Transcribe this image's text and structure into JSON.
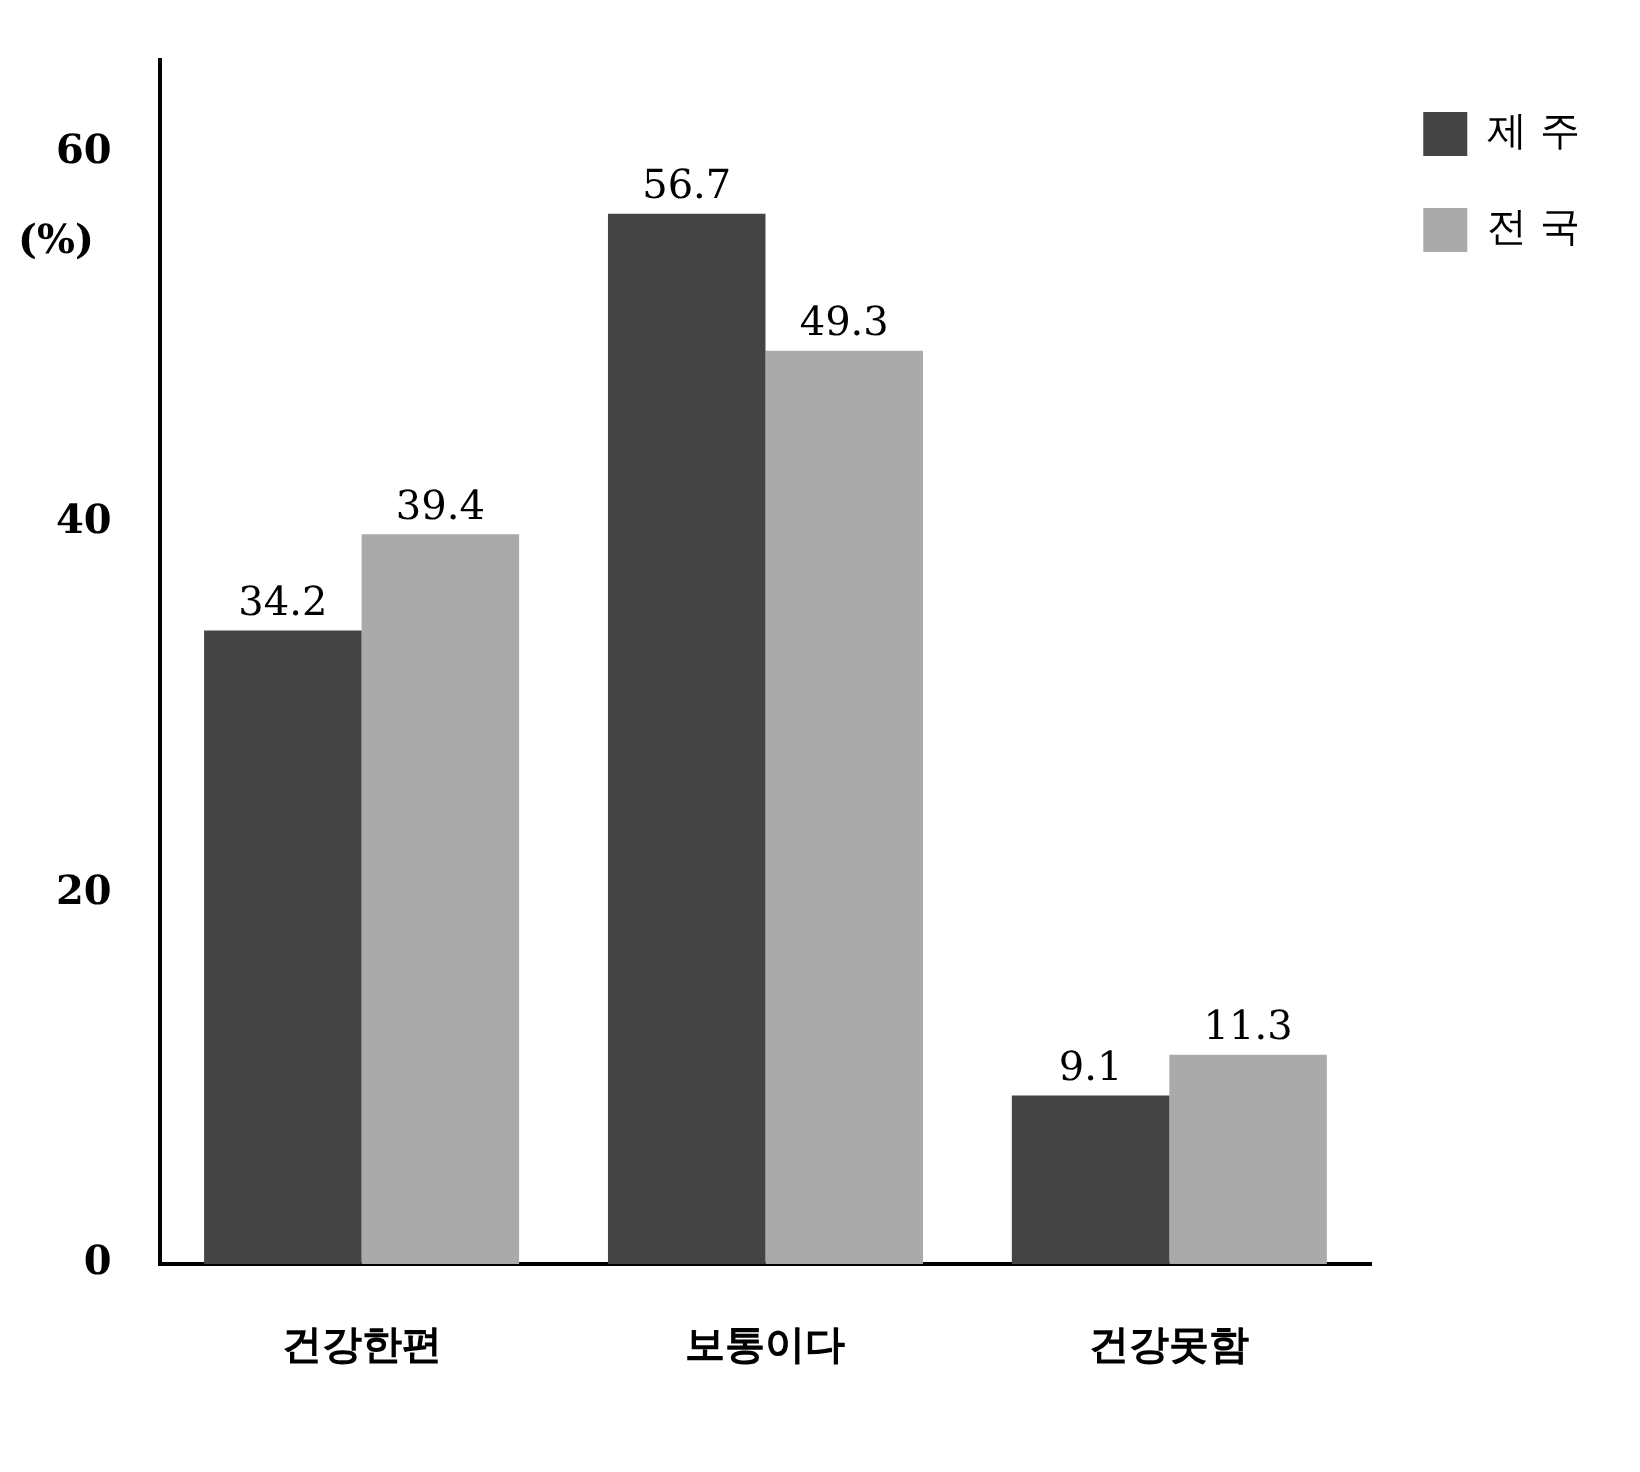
{
  "chart_data": {
    "type": "bar",
    "ylabel": "(%)",
    "categories": [
      "건강한편",
      "보통이다",
      "건강못함"
    ],
    "series": [
      {
        "name": "제 주",
        "color": "#444444",
        "values": [
          34.2,
          56.7,
          9.1
        ]
      },
      {
        "name": "전 국",
        "color": "#aaaaaa",
        "values": [
          39.4,
          49.3,
          11.3
        ]
      }
    ],
    "ylim": [
      0,
      65
    ],
    "yticks": [
      0,
      20,
      40,
      60
    ],
    "grid": false,
    "legend": "right",
    "data_labels": true
  }
}
